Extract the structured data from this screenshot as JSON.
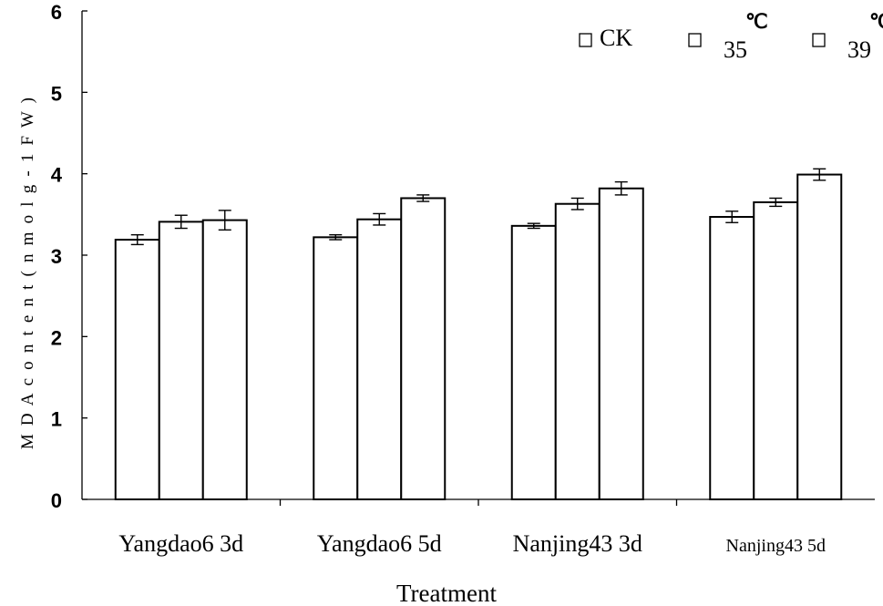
{
  "chart_data": {
    "type": "bar",
    "title": "",
    "xlabel": "Treatment",
    "ylabel": "M D A c o n t e n t ( n m o l g - 1 F W )",
    "ylim": [
      0,
      6
    ],
    "yticks": [
      "0",
      "1",
      "2",
      "3",
      "4",
      "5",
      "6"
    ],
    "categories": [
      "Yangdao6 3d",
      "Yangdao6 5d",
      "Nanjing43 3d",
      "Nanjing43 5d"
    ],
    "series": [
      {
        "name": "CK",
        "values": [
          3.19,
          3.22,
          3.36,
          3.47
        ],
        "errors": [
          0.06,
          0.03,
          0.03,
          0.07
        ]
      },
      {
        "name": "35",
        "unit": "℃",
        "values": [
          3.41,
          3.44,
          3.63,
          3.65
        ],
        "errors": [
          0.08,
          0.07,
          0.07,
          0.05
        ]
      },
      {
        "name": "39",
        "unit": "℃",
        "values": [
          3.43,
          3.7,
          3.82,
          3.99
        ],
        "errors": [
          0.12,
          0.04,
          0.08,
          0.07
        ]
      }
    ],
    "grid": false,
    "legend": "top-right"
  }
}
